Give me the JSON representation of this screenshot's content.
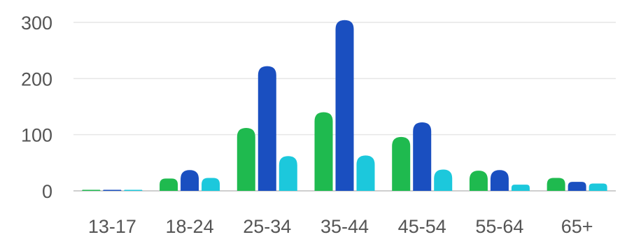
{
  "chart_data": {
    "type": "bar",
    "categories": [
      "13-17",
      "18-24",
      "25-34",
      "35-44",
      "45-54",
      "55-64",
      "65+"
    ],
    "series": [
      {
        "color": "#1fba4f",
        "values": [
          1,
          22,
          112,
          140,
          96,
          36,
          23
        ]
      },
      {
        "color": "#1a4fc0",
        "values": [
          1,
          37,
          222,
          304,
          122,
          37,
          16
        ]
      },
      {
        "color": "#1cc8dc",
        "values": [
          0,
          23,
          62,
          63,
          38,
          11,
          13
        ]
      }
    ],
    "yticks": [
      0,
      100,
      200,
      300
    ],
    "ylim": [
      0,
      330
    ],
    "grid": true,
    "legend": "none"
  }
}
